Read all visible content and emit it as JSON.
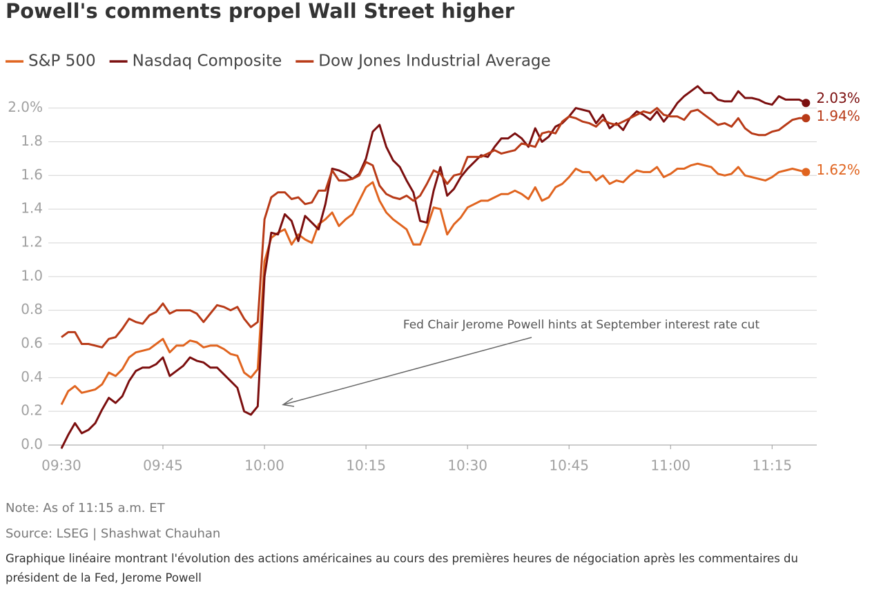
{
  "chart_data": {
    "type": "line",
    "title": "Powell's comments propel Wall Street higher",
    "annotation": "Fed Chair Jerome Powell hints at September interest rate cut",
    "note": "Note: As of 11:15 a.m. ET",
    "source": "Source: LSEG | Shashwat Chauhan",
    "description": "Graphique linéaire montrant l'évolution des actions américaines au cours des premières heures de négociation après les commentaires du président de la Fed, Jerome Powell",
    "x": [
      0,
      1,
      2,
      3,
      4,
      5,
      6,
      7,
      8,
      9,
      10,
      11,
      12,
      13,
      14,
      15,
      16,
      17,
      18,
      19,
      20,
      21,
      22,
      23,
      24,
      25,
      26,
      27,
      28,
      29,
      30,
      31,
      32,
      33,
      34,
      35,
      36,
      37,
      38,
      39,
      40,
      41,
      42,
      43,
      44,
      45,
      46,
      47,
      48,
      49,
      50,
      51,
      52,
      53,
      54,
      55,
      56,
      57,
      58,
      59,
      60,
      61,
      62,
      63,
      64,
      65,
      66,
      67,
      68,
      69,
      70,
      71,
      72,
      73,
      74,
      75,
      76,
      77,
      78,
      79,
      80,
      81,
      82,
      83,
      84,
      85,
      86,
      87,
      88,
      89,
      90,
      91,
      92,
      93,
      94,
      95,
      96,
      97,
      98,
      99,
      100,
      101,
      102,
      103,
      104,
      105,
      106,
      107,
      108,
      109,
      110
    ],
    "xlim": [
      -2.75,
      111.6
    ],
    "xticks": [
      {
        "value": 0,
        "label": "09:30"
      },
      {
        "value": 15,
        "label": "09:45"
      },
      {
        "value": 30,
        "label": "10:00"
      },
      {
        "value": 45,
        "label": "10:15"
      },
      {
        "value": 60,
        "label": "10:30"
      },
      {
        "value": 75,
        "label": "10:45"
      },
      {
        "value": 90,
        "label": "11:00"
      },
      {
        "value": 105,
        "label": "11:15"
      }
    ],
    "ylim": [
      0,
      2.15
    ],
    "yticks": [
      {
        "value": 0,
        "label": "0.0"
      },
      0.2,
      0.4,
      0.6,
      0.8,
      {
        "value": 1,
        "label": "1.0"
      },
      1.2,
      1.4,
      1.6,
      1.8,
      {
        "value": 2,
        "label": "2.0%"
      }
    ],
    "grid": true,
    "legend": "top-left",
    "series": [
      {
        "name": "S&P 500",
        "color": "#e0641f",
        "end_label": "1.62%",
        "values": [
          0.24,
          0.32,
          0.35,
          0.31,
          0.32,
          0.33,
          0.36,
          0.43,
          0.41,
          0.45,
          0.52,
          0.55,
          0.56,
          0.57,
          0.6,
          0.63,
          0.55,
          0.59,
          0.59,
          0.62,
          0.61,
          0.58,
          0.59,
          0.59,
          0.57,
          0.54,
          0.53,
          0.43,
          0.4,
          0.45,
          1.09,
          1.23,
          1.26,
          1.28,
          1.19,
          1.25,
          1.22,
          1.2,
          1.31,
          1.34,
          1.38,
          1.3,
          1.34,
          1.37,
          1.45,
          1.53,
          1.56,
          1.45,
          1.38,
          1.34,
          1.31,
          1.28,
          1.19,
          1.19,
          1.29,
          1.41,
          1.4,
          1.25,
          1.31,
          1.35,
          1.41,
          1.43,
          1.45,
          1.45,
          1.47,
          1.49,
          1.49,
          1.51,
          1.49,
          1.46,
          1.53,
          1.45,
          1.47,
          1.53,
          1.55,
          1.59,
          1.64,
          1.62,
          1.62,
          1.57,
          1.6,
          1.55,
          1.57,
          1.56,
          1.6,
          1.63,
          1.62,
          1.62,
          1.65,
          1.59,
          1.61,
          1.64,
          1.64,
          1.66,
          1.67,
          1.66,
          1.65,
          1.61,
          1.6,
          1.61,
          1.65,
          1.6,
          1.59,
          1.58,
          1.57,
          1.59,
          1.62,
          1.63,
          1.64,
          1.63,
          1.62
        ]
      },
      {
        "name": "Nasdaq Composite",
        "color": "#7b0e0e",
        "end_label": "2.03%",
        "values": [
          -0.02,
          0.06,
          0.13,
          0.07,
          0.09,
          0.13,
          0.21,
          0.28,
          0.25,
          0.29,
          0.38,
          0.44,
          0.46,
          0.46,
          0.48,
          0.52,
          0.41,
          0.44,
          0.47,
          0.52,
          0.5,
          0.49,
          0.46,
          0.46,
          0.42,
          0.38,
          0.34,
          0.2,
          0.18,
          0.23,
          1.0,
          1.26,
          1.25,
          1.37,
          1.33,
          1.21,
          1.36,
          1.32,
          1.28,
          1.43,
          1.64,
          1.63,
          1.61,
          1.58,
          1.61,
          1.7,
          1.86,
          1.9,
          1.77,
          1.69,
          1.65,
          1.57,
          1.5,
          1.33,
          1.32,
          1.51,
          1.65,
          1.48,
          1.52,
          1.59,
          1.64,
          1.68,
          1.72,
          1.71,
          1.77,
          1.82,
          1.82,
          1.85,
          1.82,
          1.77,
          1.88,
          1.8,
          1.83,
          1.89,
          1.91,
          1.95,
          2.0,
          1.99,
          1.98,
          1.91,
          1.96,
          1.88,
          1.91,
          1.87,
          1.94,
          1.98,
          1.96,
          1.93,
          1.98,
          1.92,
          1.97,
          2.03,
          2.07,
          2.1,
          2.13,
          2.09,
          2.09,
          2.05,
          2.04,
          2.04,
          2.1,
          2.06,
          2.06,
          2.05,
          2.03,
          2.02,
          2.07,
          2.05,
          2.05,
          2.05,
          2.03
        ]
      },
      {
        "name": "Dow Jones Industrial Average",
        "color": "#b83a17",
        "end_label": "1.94%",
        "values": [
          0.64,
          0.67,
          0.67,
          0.6,
          0.6,
          0.59,
          0.58,
          0.63,
          0.64,
          0.69,
          0.75,
          0.73,
          0.72,
          0.77,
          0.79,
          0.84,
          0.78,
          0.8,
          0.8,
          0.8,
          0.78,
          0.73,
          0.78,
          0.83,
          0.82,
          0.8,
          0.82,
          0.75,
          0.7,
          0.73,
          1.34,
          1.47,
          1.5,
          1.5,
          1.46,
          1.47,
          1.43,
          1.44,
          1.51,
          1.51,
          1.63,
          1.57,
          1.57,
          1.58,
          1.6,
          1.68,
          1.66,
          1.54,
          1.49,
          1.47,
          1.46,
          1.48,
          1.45,
          1.48,
          1.55,
          1.63,
          1.61,
          1.55,
          1.6,
          1.61,
          1.71,
          1.71,
          1.71,
          1.73,
          1.75,
          1.73,
          1.74,
          1.75,
          1.79,
          1.78,
          1.77,
          1.85,
          1.86,
          1.85,
          1.92,
          1.95,
          1.94,
          1.92,
          1.91,
          1.89,
          1.93,
          1.91,
          1.9,
          1.92,
          1.94,
          1.96,
          1.98,
          1.97,
          2.0,
          1.96,
          1.95,
          1.95,
          1.93,
          1.98,
          1.99,
          1.96,
          1.93,
          1.9,
          1.91,
          1.89,
          1.94,
          1.88,
          1.85,
          1.84,
          1.84,
          1.86,
          1.87,
          1.9,
          1.93,
          1.94,
          1.94
        ]
      }
    ]
  }
}
